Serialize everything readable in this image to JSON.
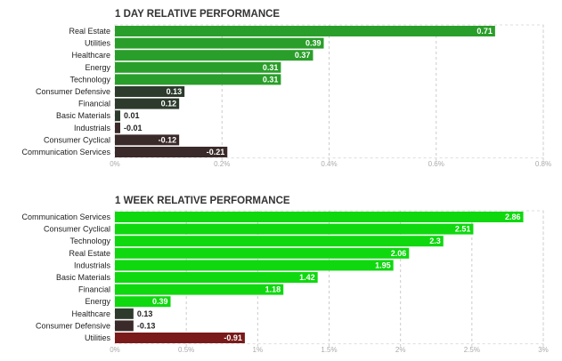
{
  "chart_data": [
    {
      "type": "bar",
      "orientation": "horizontal",
      "title": "1 DAY RELATIVE PERFORMANCE",
      "categories": [
        "Real Estate",
        "Utilities",
        "Healthcare",
        "Energy",
        "Technology",
        "Consumer Defensive",
        "Financial",
        "Basic Materials",
        "Industrials",
        "Consumer Cyclical",
        "Communication Services"
      ],
      "values": [
        0.71,
        0.39,
        0.37,
        0.31,
        0.31,
        0.13,
        0.12,
        0.01,
        -0.01,
        -0.12,
        -0.21
      ],
      "value_labels": [
        "0.71",
        "0.39",
        "0.37",
        "0.31",
        "0.31",
        "0.13",
        "0.12",
        "0.01",
        "-0.01",
        "-0.12",
        "-0.21"
      ],
      "xlim": [
        0,
        0.8
      ],
      "ticks": [
        0,
        0.2,
        0.4,
        0.6,
        0.8
      ],
      "tick_labels": [
        "0%",
        "0.2%",
        "0.4%",
        "0.6%",
        "0.8%"
      ],
      "grid": true,
      "colors": {
        "positive_strong": "#2a9e2a",
        "positive_weak": "#2d3b2d",
        "negative_weak": "#3b2a2a",
        "negative_strong": "#7a1a1a"
      }
    },
    {
      "type": "bar",
      "orientation": "horizontal",
      "title": "1 WEEK RELATIVE PERFORMANCE",
      "categories": [
        "Communication Services",
        "Consumer Cyclical",
        "Technology",
        "Real Estate",
        "Industrials",
        "Basic Materials",
        "Financial",
        "Energy",
        "Healthcare",
        "Consumer Defensive",
        "Utilities"
      ],
      "values": [
        2.86,
        2.51,
        2.3,
        2.06,
        1.95,
        1.42,
        1.18,
        0.39,
        0.13,
        -0.13,
        -0.91
      ],
      "value_labels": [
        "2.86",
        "2.51",
        "2.3",
        "2.06",
        "1.95",
        "1.42",
        "1.18",
        "0.39",
        "0.13",
        "-0.13",
        "-0.91"
      ],
      "xlim": [
        0,
        3
      ],
      "ticks": [
        0,
        0.5,
        1,
        1.5,
        2,
        2.5,
        3
      ],
      "tick_labels": [
        "0%",
        "0.5%",
        "1%",
        "1.5%",
        "2%",
        "2.5%",
        "3%"
      ],
      "grid": true,
      "colors": {
        "positive_strong": "#0fd80f",
        "positive_weak": "#2d3b2d",
        "negative_weak": "#3b2a2a",
        "negative_strong": "#7a1a1a"
      }
    }
  ]
}
